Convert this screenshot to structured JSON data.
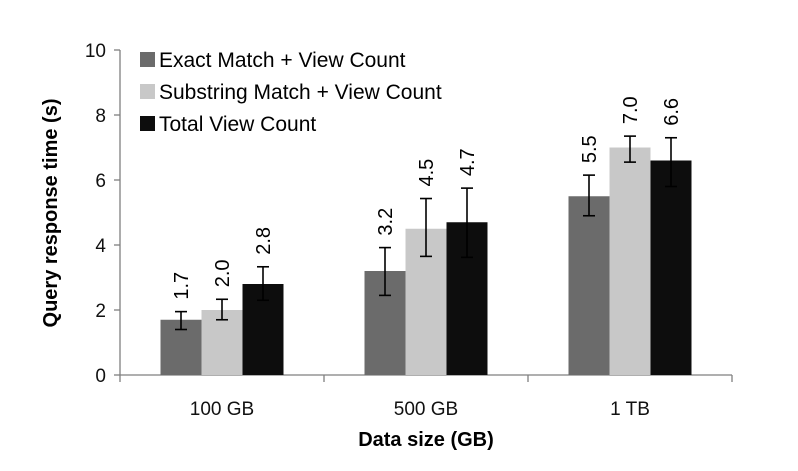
{
  "chart_data": {
    "type": "bar",
    "xlabel": "Data size (GB)",
    "ylabel": "Query response time (s)",
    "ylim": [
      0,
      10
    ],
    "yticks": [
      0,
      2,
      4,
      6,
      8,
      10
    ],
    "categories": [
      "100 GB",
      "500 GB",
      "1 TB"
    ],
    "legend_position": "top-left",
    "grid": false,
    "series": [
      {
        "name": "Exact Match + View Count",
        "color": "#6b6b6b",
        "values": [
          1.7,
          3.2,
          5.5
        ],
        "labels": [
          "1.7",
          "3.2",
          "5.5"
        ],
        "error": [
          [
            1.4,
            1.95
          ],
          [
            2.45,
            3.92
          ],
          [
            4.9,
            6.15
          ]
        ]
      },
      {
        "name": "Substring Match + View Count",
        "color": "#c8c8c8",
        "values": [
          2.0,
          4.5,
          7.0
        ],
        "labels": [
          "2.0",
          "4.5",
          "7.0"
        ],
        "error": [
          [
            1.7,
            2.33
          ],
          [
            3.65,
            5.43
          ],
          [
            6.55,
            7.35
          ]
        ]
      },
      {
        "name": "Total View Count",
        "color": "#0d0d0d",
        "values": [
          2.8,
          4.7,
          6.6
        ],
        "labels": [
          "2.8",
          "4.7",
          "6.6"
        ],
        "error": [
          [
            2.3,
            3.33
          ],
          [
            3.62,
            5.75
          ],
          [
            5.8,
            7.3
          ]
        ]
      }
    ]
  }
}
